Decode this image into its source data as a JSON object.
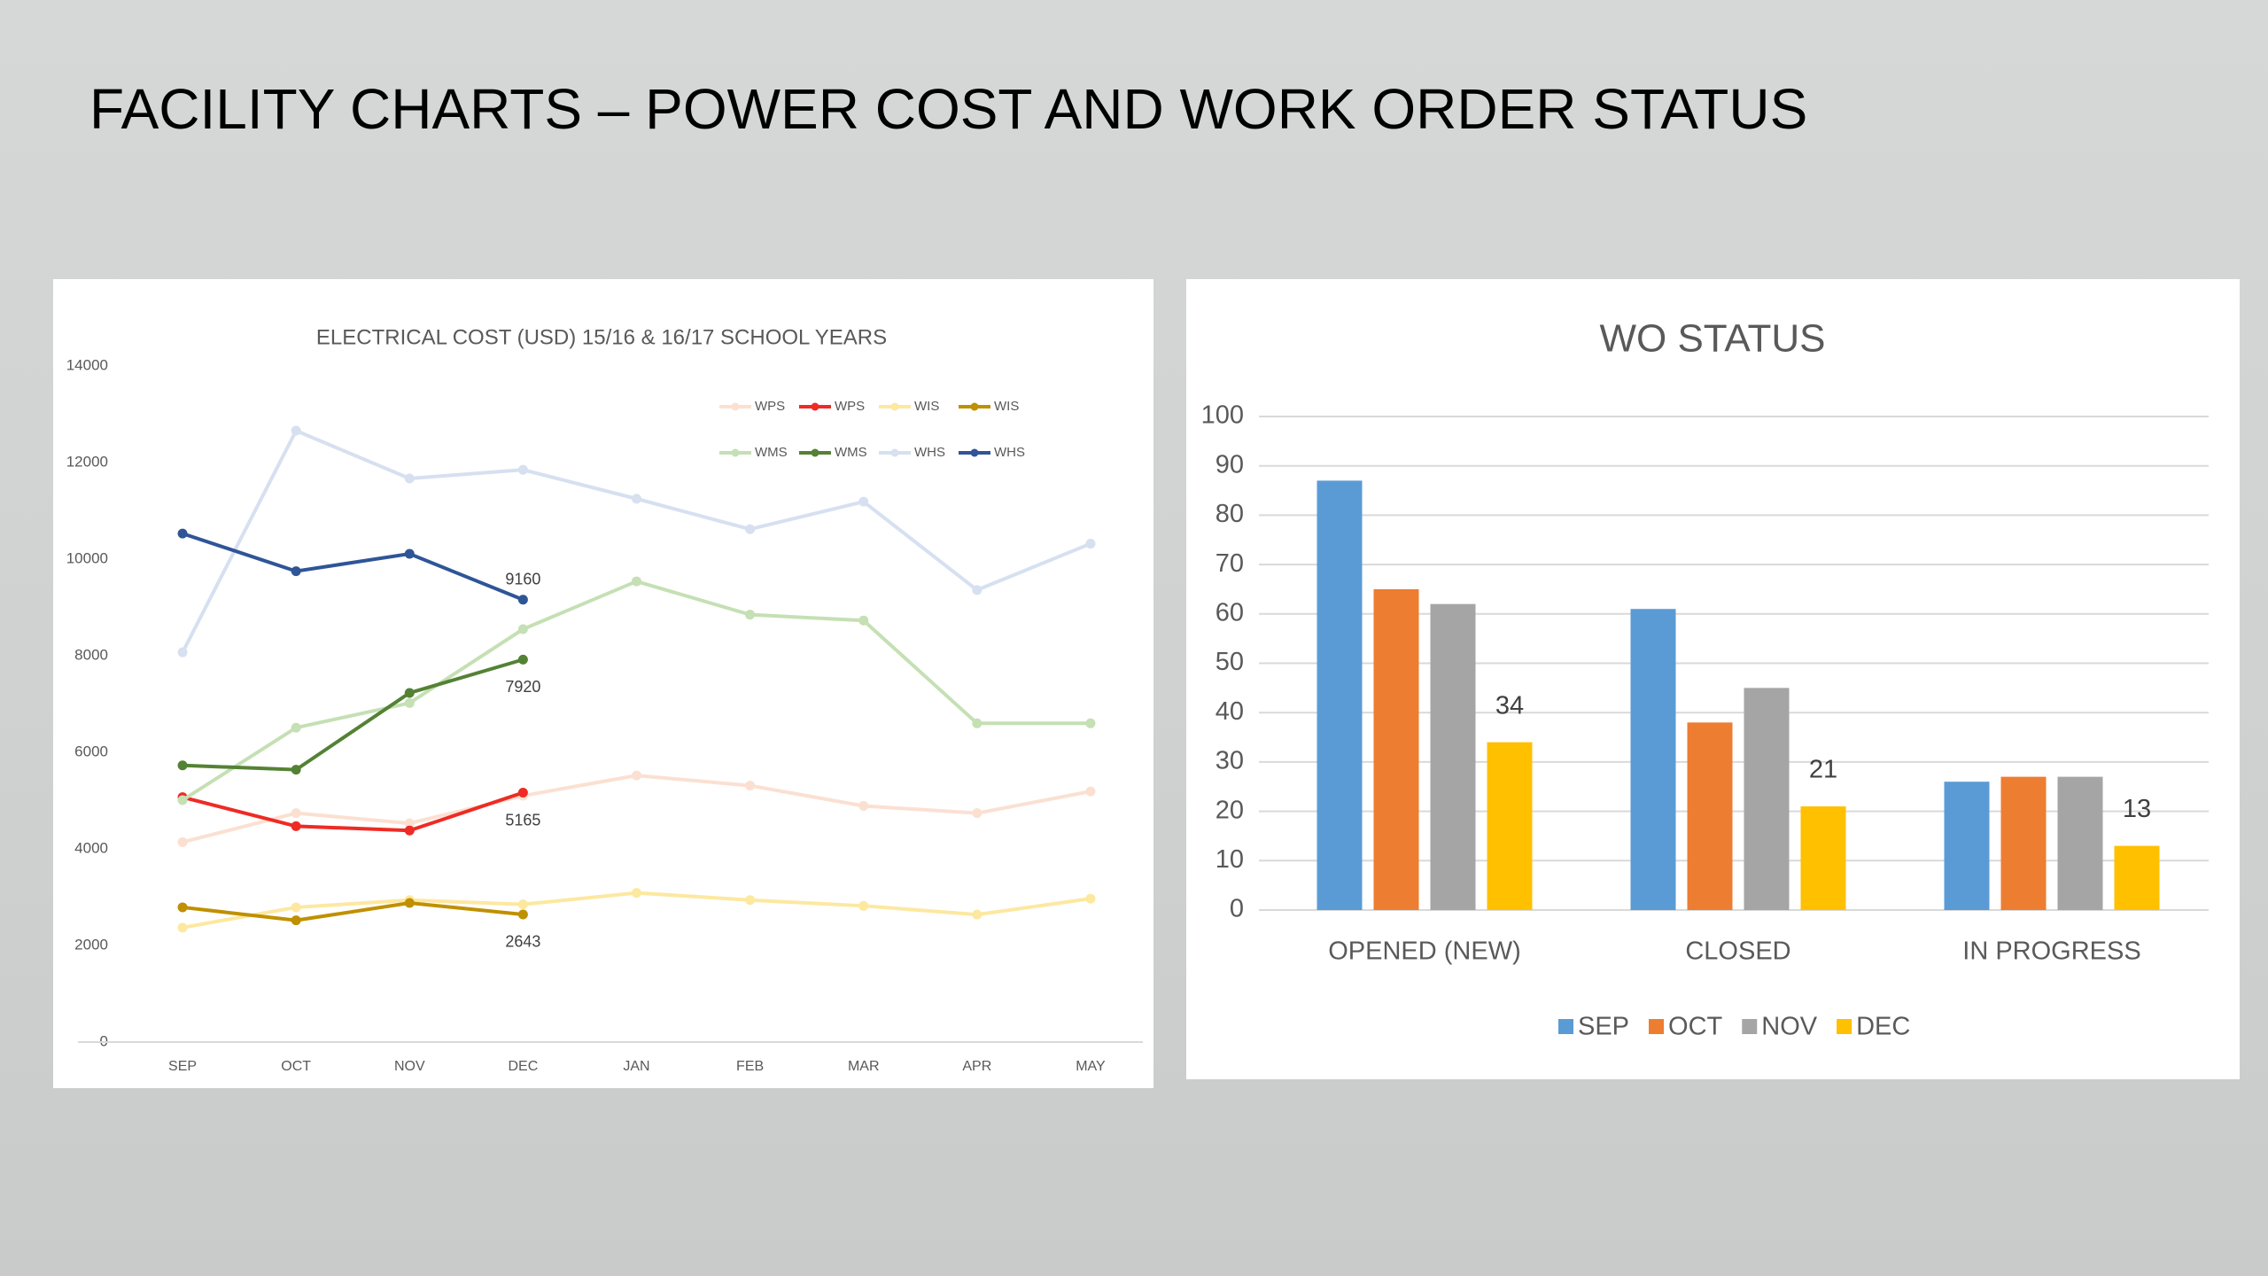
{
  "title": "FACILITY CHARTS – POWER COST AND WORK ORDER STATUS",
  "chart_data": [
    {
      "type": "line",
      "title": "ELECTRICAL COST (USD) 15/16 & 16/17 SCHOOL YEARS",
      "categories": [
        "SEP",
        "OCT",
        "NOV",
        "DEC",
        "JAN",
        "FEB",
        "MAR",
        "APR",
        "MAY"
      ],
      "series": [
        {
          "name": "WPS",
          "color": "#fbe0d2",
          "values": [
            4140,
            4740,
            4530,
            5100,
            5520,
            5310,
            4890,
            4740,
            5190
          ]
        },
        {
          "name": "WPS",
          "color": "#ee2b24",
          "values": [
            5070,
            4470,
            4380,
            5165,
            null,
            null,
            null,
            null,
            null
          ]
        },
        {
          "name": "WIS",
          "color": "#fde8a0",
          "values": [
            2370,
            2790,
            2940,
            2850,
            3090,
            2940,
            2820,
            2640,
            2970
          ]
        },
        {
          "name": "WIS",
          "color": "#bf9000",
          "values": [
            2790,
            2520,
            2880,
            2643,
            null,
            null,
            null,
            null,
            null
          ]
        },
        {
          "name": "WMS",
          "color": "#c5e0b4",
          "values": [
            5010,
            6510,
            7020,
            8550,
            9540,
            8850,
            8730,
            6600,
            6600
          ]
        },
        {
          "name": "WMS",
          "color": "#548235",
          "values": [
            5730,
            5640,
            7230,
            7920,
            null,
            null,
            null,
            null,
            null
          ]
        },
        {
          "name": "WHS",
          "color": "#d6e0f0",
          "values": [
            8070,
            12660,
            11670,
            11850,
            11250,
            10620,
            11190,
            9360,
            10320
          ]
        },
        {
          "name": "WHS",
          "color": "#2f5597",
          "values": [
            10530,
            9750,
            10110,
            9160,
            null,
            null,
            null,
            null,
            null
          ]
        }
      ],
      "ylim": [
        0,
        14000
      ],
      "yticks": [
        0,
        2000,
        4000,
        6000,
        8000,
        10000,
        12000,
        14000
      ],
      "grid": false
    },
    {
      "type": "bar",
      "title": "WO STATUS",
      "categories": [
        "OPENED (NEW)",
        "CLOSED",
        "IN PROGRESS"
      ],
      "series": [
        {
          "name": "SEP",
          "color": "#5b9bd5",
          "values": [
            87,
            61,
            26
          ]
        },
        {
          "name": "OCT",
          "color": "#ed7d31",
          "values": [
            65,
            38,
            27
          ]
        },
        {
          "name": "NOV",
          "color": "#a5a5a5",
          "values": [
            62,
            45,
            27
          ]
        },
        {
          "name": "DEC",
          "color": "#ffc000",
          "values": [
            34,
            21,
            13
          ]
        }
      ],
      "ylim": [
        0,
        100
      ],
      "yticks": [
        0,
        10,
        20,
        30,
        40,
        50,
        60,
        70,
        80,
        90,
        100
      ],
      "grid": true
    }
  ]
}
